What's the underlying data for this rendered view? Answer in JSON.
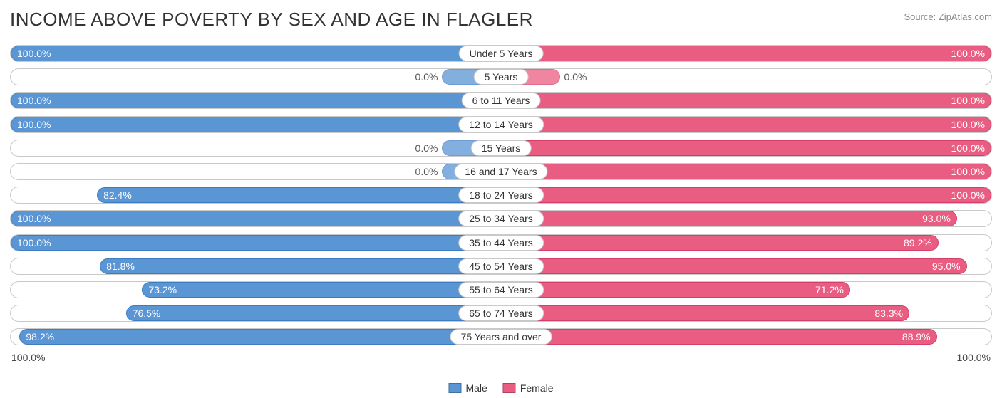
{
  "title": "INCOME ABOVE POVERTY BY SEX AND AGE IN FLAGLER",
  "source": "Source: ZipAtlas.com",
  "colors": {
    "male_fill": "#5a95d4",
    "male_border": "#3d7cc0",
    "female_fill": "#ea5d82",
    "female_border": "#d43e67",
    "track_border": "#c9c9c9",
    "text_outside": "#555555",
    "text_inside": "#ffffff"
  },
  "axis_max": 100.0,
  "min_bar_pct": 12,
  "axis": {
    "left": "100.0%",
    "right": "100.0%"
  },
  "legend": [
    {
      "label": "Male",
      "color": "#5a95d4"
    },
    {
      "label": "Female",
      "color": "#ea5d82"
    }
  ],
  "rows": [
    {
      "label": "Under 5 Years",
      "male": 100.0,
      "female": 100.0,
      "male_text": "100.0%",
      "female_text": "100.0%"
    },
    {
      "label": "5 Years",
      "male": 0.0,
      "female": 0.0,
      "male_text": "0.0%",
      "female_text": "0.0%"
    },
    {
      "label": "6 to 11 Years",
      "male": 100.0,
      "female": 100.0,
      "male_text": "100.0%",
      "female_text": "100.0%"
    },
    {
      "label": "12 to 14 Years",
      "male": 100.0,
      "female": 100.0,
      "male_text": "100.0%",
      "female_text": "100.0%"
    },
    {
      "label": "15 Years",
      "male": 0.0,
      "female": 100.0,
      "male_text": "0.0%",
      "female_text": "100.0%"
    },
    {
      "label": "16 and 17 Years",
      "male": 0.0,
      "female": 100.0,
      "male_text": "0.0%",
      "female_text": "100.0%"
    },
    {
      "label": "18 to 24 Years",
      "male": 82.4,
      "female": 100.0,
      "male_text": "82.4%",
      "female_text": "100.0%"
    },
    {
      "label": "25 to 34 Years",
      "male": 100.0,
      "female": 93.0,
      "male_text": "100.0%",
      "female_text": "93.0%"
    },
    {
      "label": "35 to 44 Years",
      "male": 100.0,
      "female": 89.2,
      "male_text": "100.0%",
      "female_text": "89.2%"
    },
    {
      "label": "45 to 54 Years",
      "male": 81.8,
      "female": 95.0,
      "male_text": "81.8%",
      "female_text": "95.0%"
    },
    {
      "label": "55 to 64 Years",
      "male": 73.2,
      "female": 71.2,
      "male_text": "73.2%",
      "female_text": "71.2%"
    },
    {
      "label": "65 to 74 Years",
      "male": 76.5,
      "female": 83.3,
      "male_text": "76.5%",
      "female_text": "83.3%"
    },
    {
      "label": "75 Years and over",
      "male": 98.2,
      "female": 88.9,
      "male_text": "98.2%",
      "female_text": "88.9%"
    }
  ]
}
